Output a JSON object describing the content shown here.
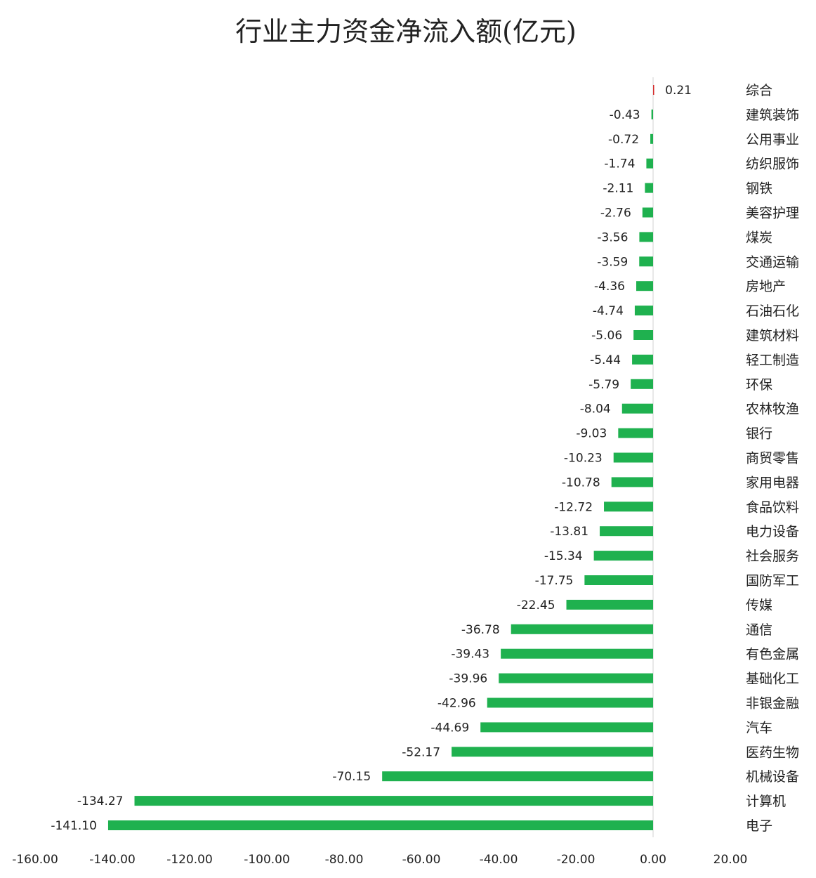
{
  "chart_data": {
    "type": "bar",
    "orientation": "horizontal",
    "title": "行业主力资金净流入额(亿元)",
    "xlabel": "",
    "ylabel": "",
    "xlim": [
      -160,
      20
    ],
    "xticks": [
      "-160.00",
      "-140.00",
      "-120.00",
      "-100.00",
      "-80.00",
      "-60.00",
      "-40.00",
      "-20.00",
      "0.00",
      "20.00"
    ],
    "grid": false,
    "legend": "none",
    "categories": [
      "综合",
      "建筑装饰",
      "公用事业",
      "纺织服饰",
      "钢铁",
      "美容护理",
      "煤炭",
      "交通运输",
      "房地产",
      "石油石化",
      "建筑材料",
      "轻工制造",
      "环保",
      "农林牧渔",
      "银行",
      "商贸零售",
      "家用电器",
      "食品饮料",
      "电力设备",
      "社会服务",
      "国防军工",
      "传媒",
      "通信",
      "有色金属",
      "基础化工",
      "非银金融",
      "汽车",
      "医药生物",
      "机械设备",
      "计算机",
      "电子"
    ],
    "values": [
      0.21,
      -0.43,
      -0.72,
      -1.74,
      -2.11,
      -2.76,
      -3.56,
      -3.59,
      -4.36,
      -4.74,
      -5.06,
      -5.44,
      -5.79,
      -8.04,
      -9.03,
      -10.23,
      -10.78,
      -12.72,
      -13.81,
      -15.34,
      -17.75,
      -22.45,
      -36.78,
      -39.43,
      -39.96,
      -42.96,
      -44.69,
      -52.17,
      -70.15,
      -134.27,
      -141.1
    ],
    "value_labels": [
      "0.21",
      "-0.43",
      "-0.72",
      "-1.74",
      "-2.11",
      "-2.76",
      "-3.56",
      "-3.59",
      "-4.36",
      "-4.74",
      "-5.06",
      "-5.44",
      "-5.79",
      "-8.04",
      "-9.03",
      "-10.23",
      "-10.78",
      "-12.72",
      "-13.81",
      "-15.34",
      "-17.75",
      "-22.45",
      "-36.78",
      "-39.43",
      "-39.96",
      "-42.96",
      "-44.69",
      "-52.17",
      "-70.15",
      "-134.27",
      "-141.10"
    ],
    "colors": {
      "positive": "#d42a2a",
      "negative": "#1fb14f",
      "axis": "#d0d0d0"
    }
  }
}
